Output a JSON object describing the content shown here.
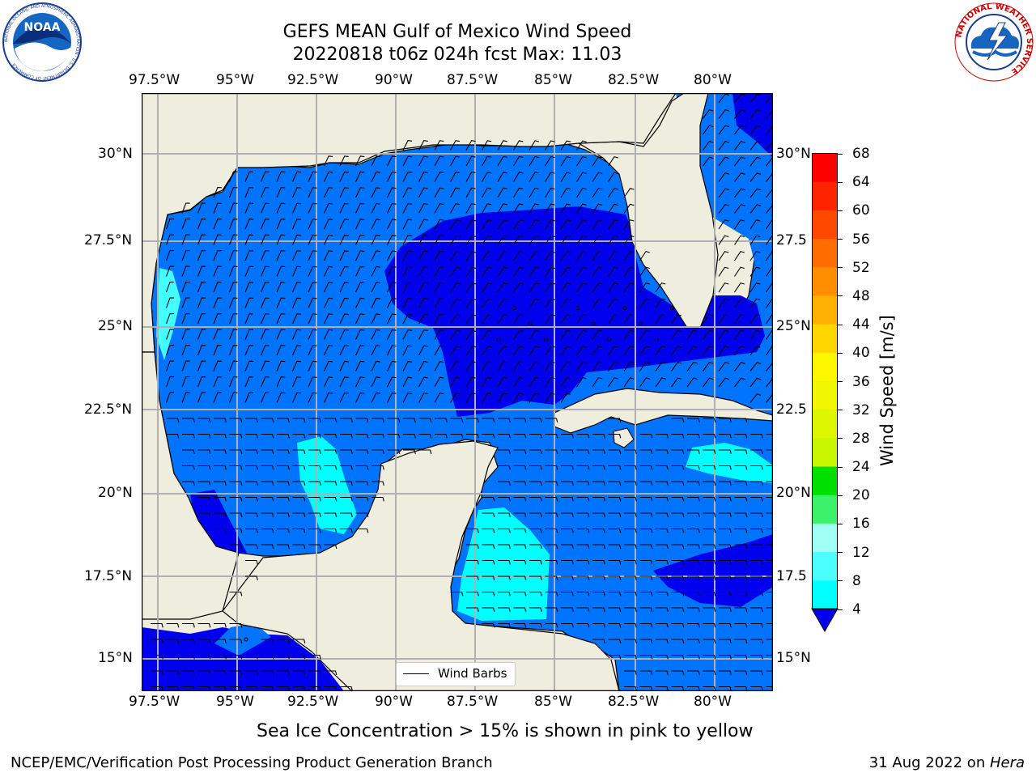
{
  "header": {
    "title_line1": "GEFS MEAN Gulf of Mexico Wind Speed",
    "title_line2": "20220818 t06z 024h fcst   Max: 11.03"
  },
  "logos": {
    "noaa_text": "NOAA",
    "noaa_ring": "NATIONAL OCEANIC AND ATMOSPHERIC ADMINISTRATION · U.S. DEPARTMENT OF COMMERCE",
    "nws_ring": "NATIONAL WEATHER SERVICE"
  },
  "map": {
    "lon_labels": [
      "97.5°W",
      "95°W",
      "92.5°W",
      "90°W",
      "87.5°W",
      "85°W",
      "82.5°W",
      "80°W"
    ],
    "lat_labels": [
      "30°N",
      "27.5°N",
      "25°N",
      "22.5°N",
      "20°N",
      "17.5°N",
      "15°N"
    ],
    "lat_labels_right": [
      "30°N",
      "27.5",
      "25°N",
      "22.5",
      "20°N",
      "17.5",
      "15°N"
    ],
    "legend_label": "Wind Barbs",
    "colors": {
      "land": "#efedde",
      "ocean_4_8": "#0074ff",
      "ocean_0_4": "#0000ee",
      "ocean_8_12": "#00ffff",
      "ocean_12_16": "#44ffff"
    }
  },
  "colorbar": {
    "label": "Wind Speed [m/s]",
    "ticks": [
      "68",
      "64",
      "60",
      "56",
      "52",
      "48",
      "44",
      "40",
      "36",
      "32",
      "28",
      "24",
      "20",
      "16",
      "12",
      "8",
      "4"
    ],
    "colors": [
      "#ff0000",
      "#ff2400",
      "#ff4800",
      "#ff6d00",
      "#ff8f00",
      "#ffb000",
      "#ffd600",
      "#fff700",
      "#f0f700",
      "#dcf700",
      "#c8f700",
      "#6ef500",
      "#00e000",
      "#3cf26a",
      "#a0fff4",
      "#4cffff",
      "#00ffff",
      "#0078ff"
    ],
    "extend_color": "#0000ee"
  },
  "footer": {
    "note": "Sea Ice Concentration > 15% is shown in pink to yellow",
    "credit": "NCEP/EMC/Verification Post Processing Product Generation Branch",
    "date": "31 Aug 2022 on ",
    "host": "Hera"
  }
}
